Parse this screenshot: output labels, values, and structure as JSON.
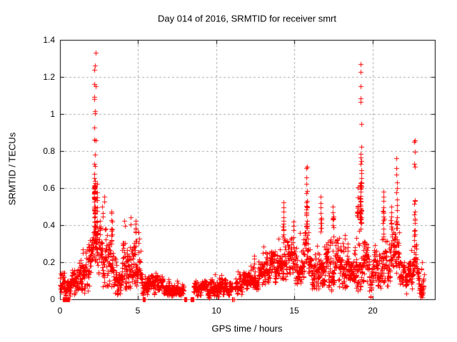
{
  "chart_data": {
    "type": "scatter",
    "title": "Day 014 of 2016, SRMTID for receiver smrt",
    "xlabel": "GPS time / hours",
    "ylabel": "SRMTID / TECUs",
    "xlim": [
      0,
      24
    ],
    "ylim": [
      0,
      1.4
    ],
    "xticks": [
      {
        "v": 0,
        "label": "0"
      },
      {
        "v": 5,
        "label": "5"
      },
      {
        "v": 10,
        "label": "10"
      },
      {
        "v": 15,
        "label": "15"
      },
      {
        "v": 20,
        "label": "20"
      }
    ],
    "yticks": [
      {
        "v": 0,
        "label": "0"
      },
      {
        "v": 0.2,
        "label": "0.2"
      },
      {
        "v": 0.4,
        "label": "0.4"
      },
      {
        "v": 0.6,
        "label": "0.6"
      },
      {
        "v": 0.8,
        "label": "0.8"
      },
      {
        "v": 1,
        "label": "1"
      },
      {
        "v": 1.2,
        "label": "1.2"
      },
      {
        "v": 1.4,
        "label": "1.4"
      }
    ],
    "grid": true,
    "legend": "none",
    "marker": {
      "shape": "plus",
      "color": "#ff0000",
      "size": 7
    },
    "grid_color": "#aaaaaa",
    "border_color": "#000000",
    "text_color": "#000000",
    "max_point": {
      "x": 2.23,
      "y": 1.33
    },
    "points_per_hour": 105,
    "seed": 42,
    "baseline_segments": [
      [
        0.0,
        0.32,
        0.04,
        0.16
      ],
      [
        0.32,
        0.75,
        0.02,
        0.11
      ],
      [
        0.75,
        1.25,
        0.04,
        0.16
      ],
      [
        1.25,
        1.65,
        0.05,
        0.24
      ],
      [
        1.65,
        2.0,
        0.07,
        0.32
      ],
      [
        2.0,
        2.45,
        0.08,
        0.4
      ],
      [
        2.45,
        2.95,
        0.08,
        0.42
      ],
      [
        2.95,
        3.45,
        0.07,
        0.35
      ],
      [
        3.45,
        3.95,
        0.05,
        0.22
      ],
      [
        3.95,
        4.65,
        0.07,
        0.34
      ],
      [
        4.65,
        5.15,
        0.06,
        0.3
      ],
      [
        5.15,
        5.65,
        0.04,
        0.16
      ],
      [
        5.65,
        6.6,
        0.04,
        0.14
      ],
      [
        6.6,
        7.55,
        0.03,
        0.11
      ],
      [
        7.55,
        7.92,
        0.03,
        0.09
      ],
      [
        8.55,
        9.6,
        0.02,
        0.1
      ],
      [
        9.6,
        10.65,
        0.03,
        0.13
      ],
      [
        10.65,
        11.05,
        0.02,
        0.09
      ],
      [
        11.22,
        12.15,
        0.04,
        0.15
      ],
      [
        12.15,
        13.15,
        0.07,
        0.2
      ],
      [
        13.15,
        13.95,
        0.09,
        0.26
      ],
      [
        13.95,
        14.75,
        0.13,
        0.33
      ],
      [
        14.75,
        15.35,
        0.1,
        0.33
      ],
      [
        15.35,
        15.95,
        0.12,
        0.38
      ],
      [
        15.95,
        16.55,
        0.08,
        0.28
      ],
      [
        16.55,
        17.15,
        0.09,
        0.33
      ],
      [
        17.15,
        17.9,
        0.07,
        0.33
      ],
      [
        17.9,
        18.55,
        0.09,
        0.3
      ],
      [
        18.55,
        18.85,
        0.05,
        0.2
      ],
      [
        18.85,
        19.45,
        0.08,
        0.38
      ],
      [
        19.45,
        20.45,
        0.05,
        0.3
      ],
      [
        20.45,
        21.05,
        0.09,
        0.33
      ],
      [
        21.05,
        21.75,
        0.12,
        0.38
      ],
      [
        21.75,
        22.45,
        0.05,
        0.2
      ],
      [
        22.45,
        22.95,
        0.08,
        0.3
      ],
      [
        22.95,
        23.3,
        0.03,
        0.16
      ]
    ],
    "spike_columns": [
      {
        "x": 1.45,
        "w": 0.06,
        "top": [
          0.27,
          0.25
        ]
      },
      {
        "x": 1.8,
        "w": 0.06,
        "top": [
          0.3,
          0.28
        ]
      },
      {
        "x": 2.22,
        "w": 0.1,
        "top": [
          1.33,
          1.26,
          1.24,
          1.16,
          1.15,
          1.09,
          1.08,
          1.02,
          1.0,
          0.93,
          0.86,
          0.85,
          0.78,
          0.73,
          0.72,
          0.68,
          0.66
        ],
        "fill": [
          0.35,
          0.65,
          45
        ]
      },
      {
        "x": 2.38,
        "w": 0.05,
        "top": [
          0.62,
          0.58,
          0.55
        ],
        "fill": [
          0.3,
          0.55,
          10
        ]
      },
      {
        "x": 2.72,
        "w": 0.06,
        "top": [
          0.5,
          0.47,
          0.45
        ]
      },
      {
        "x": 2.85,
        "w": 0.04,
        "top": [
          0.55,
          0.52
        ]
      },
      {
        "x": 3.3,
        "w": 0.07,
        "top": [
          0.48,
          0.46,
          0.43
        ],
        "fill": [
          0.3,
          0.43,
          8
        ]
      },
      {
        "x": 4.15,
        "w": 0.06,
        "top": [
          0.42,
          0.4
        ]
      },
      {
        "x": 4.5,
        "w": 0.05,
        "top": [
          0.44,
          0.41
        ]
      },
      {
        "x": 4.85,
        "w": 0.05,
        "top": [
          0.42,
          0.4,
          0.38
        ],
        "fill": [
          0.28,
          0.38,
          8
        ]
      },
      {
        "x": 5.05,
        "w": 0.04,
        "top": [
          0.36,
          0.33
        ]
      },
      {
        "x": 12.4,
        "w": 0.05,
        "top": [
          0.24,
          0.22
        ]
      },
      {
        "x": 13.0,
        "w": 0.05,
        "top": [
          0.28,
          0.25
        ]
      },
      {
        "x": 14.3,
        "w": 0.06,
        "top": [
          0.52,
          0.5,
          0.47,
          0.44
        ],
        "fill": [
          0.33,
          0.44,
          10
        ]
      },
      {
        "x": 14.95,
        "w": 0.05,
        "top": [
          0.42,
          0.4,
          0.38
        ]
      },
      {
        "x": 15.8,
        "w": 0.07,
        "top": [
          0.72,
          0.71,
          0.66
        ],
        "fill": [
          0.38,
          0.64,
          18
        ]
      },
      {
        "x": 16.7,
        "w": 0.06,
        "top": [
          0.55,
          0.52,
          0.5,
          0.46
        ],
        "fill": [
          0.33,
          0.46,
          8
        ]
      },
      {
        "x": 17.5,
        "w": 0.06,
        "top": [
          0.5,
          0.47,
          0.45
        ],
        "fill": [
          0.33,
          0.45,
          6
        ]
      },
      {
        "x": 18.2,
        "w": 0.06,
        "top": [
          0.35,
          0.33
        ]
      },
      {
        "x": 19.05,
        "w": 0.05,
        "top": [
          0.6,
          0.55,
          0.5
        ],
        "fill": [
          0.38,
          0.5,
          8
        ]
      },
      {
        "x": 19.25,
        "w": 0.08,
        "top": [
          1.27,
          1.22,
          1.15,
          1.09,
          1.06,
          0.94,
          0.82,
          0.79,
          0.77,
          0.75,
          0.73,
          0.7,
          0.68,
          0.66
        ],
        "fill": [
          0.38,
          0.64,
          35
        ]
      },
      {
        "x": 20.7,
        "w": 0.07,
        "top": [
          0.58,
          0.55,
          0.53,
          0.5
        ],
        "fill": [
          0.33,
          0.5,
          10
        ]
      },
      {
        "x": 21.2,
        "w": 0.06,
        "top": [
          0.5,
          0.47,
          0.44
        ],
        "fill": [
          0.38,
          0.44,
          5
        ]
      },
      {
        "x": 21.55,
        "w": 0.06,
        "top": [
          0.76,
          0.71,
          0.67,
          0.63,
          0.6
        ],
        "fill": [
          0.38,
          0.58,
          12
        ]
      },
      {
        "x": 22.7,
        "w": 0.07,
        "top": [
          0.86,
          0.85,
          0.8,
          0.73,
          0.72
        ],
        "fill": [
          0.3,
          0.55,
          15
        ]
      },
      {
        "x": 23.15,
        "w": 0.04,
        "top": [
          0.2,
          0.16
        ]
      }
    ],
    "zero_runs": [
      [
        0.17,
        0.62
      ],
      [
        5.28,
        5.33
      ],
      [
        5.4,
        5.45
      ],
      [
        7.93,
        8.1
      ],
      [
        8.36,
        8.54
      ],
      [
        11.03,
        11.08
      ],
      [
        11.13,
        11.18
      ]
    ]
  }
}
